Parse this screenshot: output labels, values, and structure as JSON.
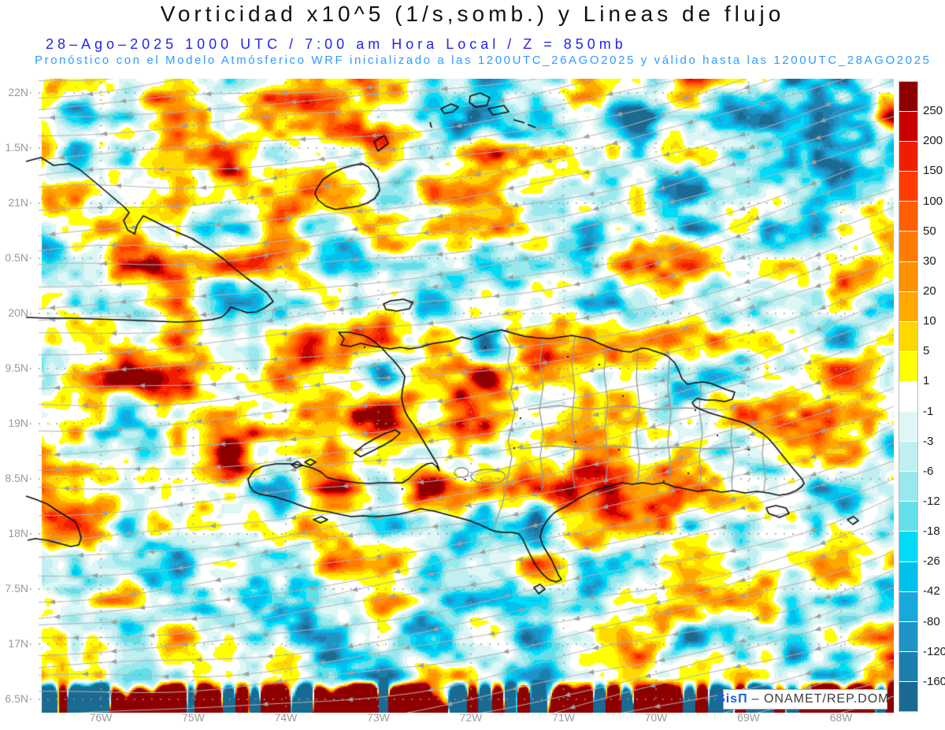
{
  "header": {
    "title": "Vorticidad x10^5 (1/s,somb.) y Lineas de flujo",
    "subtitle_datetime": "28–Ago–2025   1000 UTC / 7:00 am Hora Local / Z = 850mb",
    "subtitle_model": "Pronóstico con el Modelo Atmósferico WRF inicializado a las 1200UTC_26AGO2025 y válido hasta las  1200UTC_28AGO2025"
  },
  "map": {
    "lat_labels": [
      "22N",
      "1.5N",
      "21N",
      "0.5N",
      "20N",
      "9.5N",
      "19N",
      "8.5N",
      "18N",
      "7.5N",
      "17N",
      "6.5N"
    ],
    "lon_labels": [
      "76W",
      "75W",
      "74W",
      "73W",
      "72W",
      "71W",
      "70W",
      "69W",
      "68W"
    ]
  },
  "colorbar": {
    "tick_labels": [
      "250",
      "200",
      "150",
      "100",
      "50",
      "30",
      "20",
      "10",
      "5",
      "1",
      "-1",
      "-3",
      "-6",
      "-12",
      "-18",
      "-26",
      "-42",
      "-80",
      "-120",
      "-160"
    ],
    "segment_colors": [
      "#8e0000",
      "#c80000",
      "#f01e00",
      "#ff3c00",
      "#ff5f00",
      "#ff7b00",
      "#ff9000",
      "#ffa800",
      "#ffd800",
      "#ffff00",
      "#ffffff",
      "#dff6f6",
      "#bfeff1",
      "#99e8ee",
      "#63dfea",
      "#00dcf8",
      "#00c0ee",
      "#18a8dc",
      "#1e93c6",
      "#1d7fae",
      "#1a6a92"
    ]
  },
  "watermark": {
    "brand": "SisΠ",
    "text": "–  ONAMET/REP.DOM."
  },
  "style_colors": {
    "streamline": "#b4b4b4",
    "arrow": "#a0a0a0",
    "grid_dot": "#9b9b9b",
    "coastline": "#0d0d0d",
    "province_border": "#9a9a9a"
  }
}
